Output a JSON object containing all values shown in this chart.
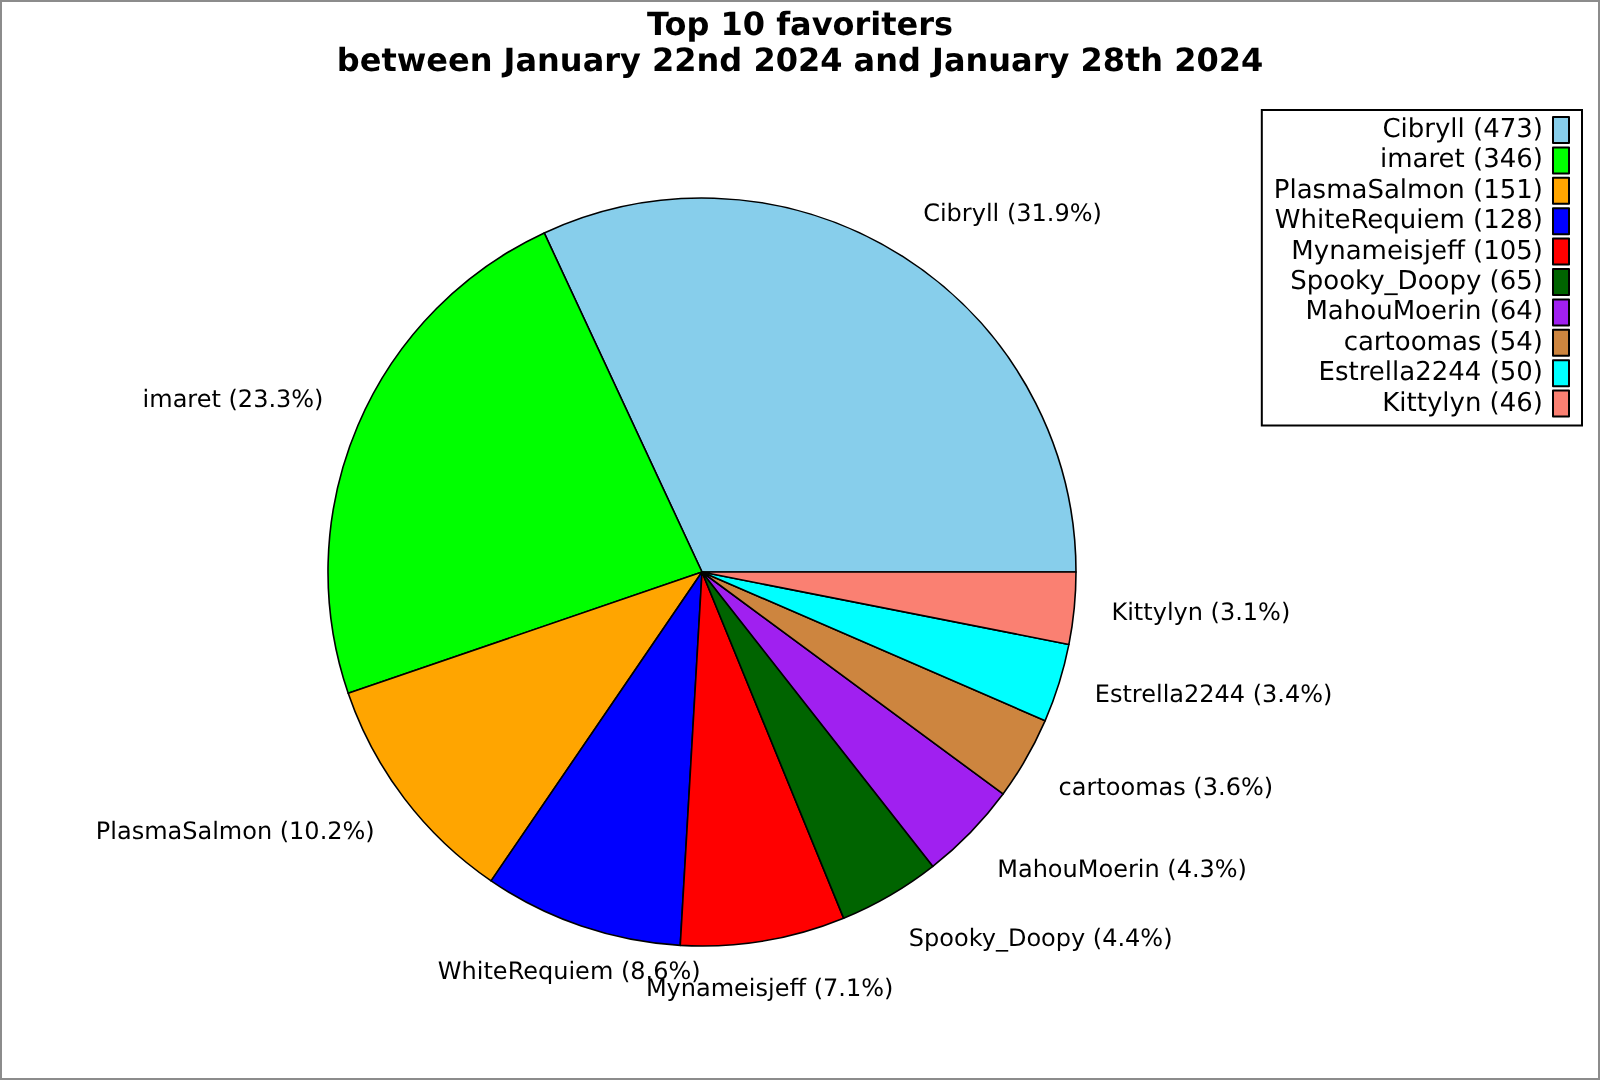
{
  "chart_data": {
    "type": "pie",
    "title": "Top 10 favoriters\nbetween January 22nd 2024 and January 28th 2024",
    "categories": [
      "Cibryll (473)",
      "imaret (346)",
      "PlasmaSalmon (151)",
      "WhiteRequiem (128)",
      "Mynameisjeff (105)",
      "Spooky_Doopy (65)",
      "MahouMoerin (64)",
      "cartoomas (54)",
      "Estrella2244 (50)",
      "Kittylyn (46)"
    ],
    "values": [
      31.9,
      23.3,
      10.2,
      8.6,
      7.1,
      4.4,
      4.3,
      3.6,
      3.4,
      3.1
    ],
    "value_labels": [
      "Cibryll (31.9%)",
      "imaret (23.3%)",
      "PlasmaSalmon (10.2%)",
      "WhiteRequiem (8.6%)",
      "Mynameisjeff (7.1%)",
      "Spooky_Doopy (4.4%)",
      "MahouMoerin (4.3%)",
      "cartoomas (3.6%)",
      "Estrella2244 (3.4%)",
      "Kittylyn (3.1%)"
    ],
    "colors": [
      "#87ceeb",
      "#00ff00",
      "#ffa500",
      "#0000ff",
      "#ff0000",
      "#006400",
      "#a020f0",
      "#cd853f",
      "#00ffff",
      "#fa8072"
    ],
    "legend": "top right"
  }
}
